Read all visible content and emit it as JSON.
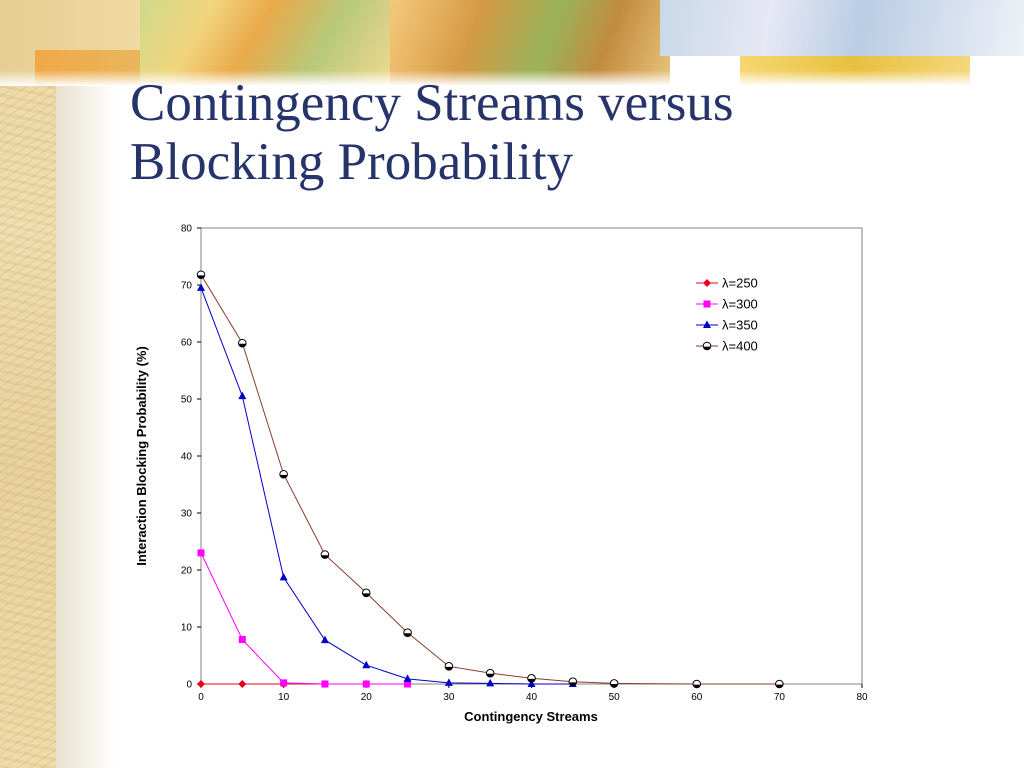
{
  "slide": {
    "title_line1": "Contingency Streams versus",
    "title_line2": "Blocking Probability"
  },
  "theme": {
    "title_color": "#27336b",
    "plot_border": "#808080"
  },
  "chart_data": {
    "type": "line",
    "xlabel": "Contingency Streams",
    "ylabel": "Interaction Blocking Probability (%)",
    "xlim": [
      0,
      80
    ],
    "ylim": [
      0,
      80
    ],
    "xticks": [
      0,
      10,
      20,
      30,
      40,
      50,
      60,
      70,
      80
    ],
    "yticks": [
      0,
      10,
      20,
      30,
      40,
      50,
      60,
      70,
      80
    ],
    "grid": false,
    "legend_position": "top-right",
    "series": [
      {
        "name": "λ=250",
        "color": "#e8001c",
        "marker": "diamond",
        "x": [
          0,
          5,
          10,
          15,
          20
        ],
        "y": [
          0,
          0,
          0,
          0,
          0
        ]
      },
      {
        "name": "λ=300",
        "color": "#ff00ff",
        "marker": "square",
        "x": [
          0,
          5,
          10,
          15,
          20,
          25
        ],
        "y": [
          23,
          7.8,
          0.2,
          0,
          0,
          0
        ]
      },
      {
        "name": "λ=350",
        "color": "#0000c8",
        "marker": "triangle",
        "x": [
          0,
          5,
          10,
          15,
          20,
          25,
          30,
          35,
          40,
          45
        ],
        "y": [
          69.5,
          50.5,
          18.7,
          7.7,
          3.3,
          0.9,
          0.2,
          0.1,
          0,
          0
        ]
      },
      {
        "name": "λ=400",
        "color": "#8b3a2a",
        "marker": "circle",
        "x": [
          0,
          5,
          10,
          15,
          20,
          25,
          30,
          35,
          40,
          45,
          50,
          60,
          70
        ],
        "y": [
          71.8,
          59.8,
          36.8,
          22.7,
          16,
          9,
          3.1,
          1.9,
          1,
          0.4,
          0.1,
          0,
          0
        ]
      }
    ]
  }
}
